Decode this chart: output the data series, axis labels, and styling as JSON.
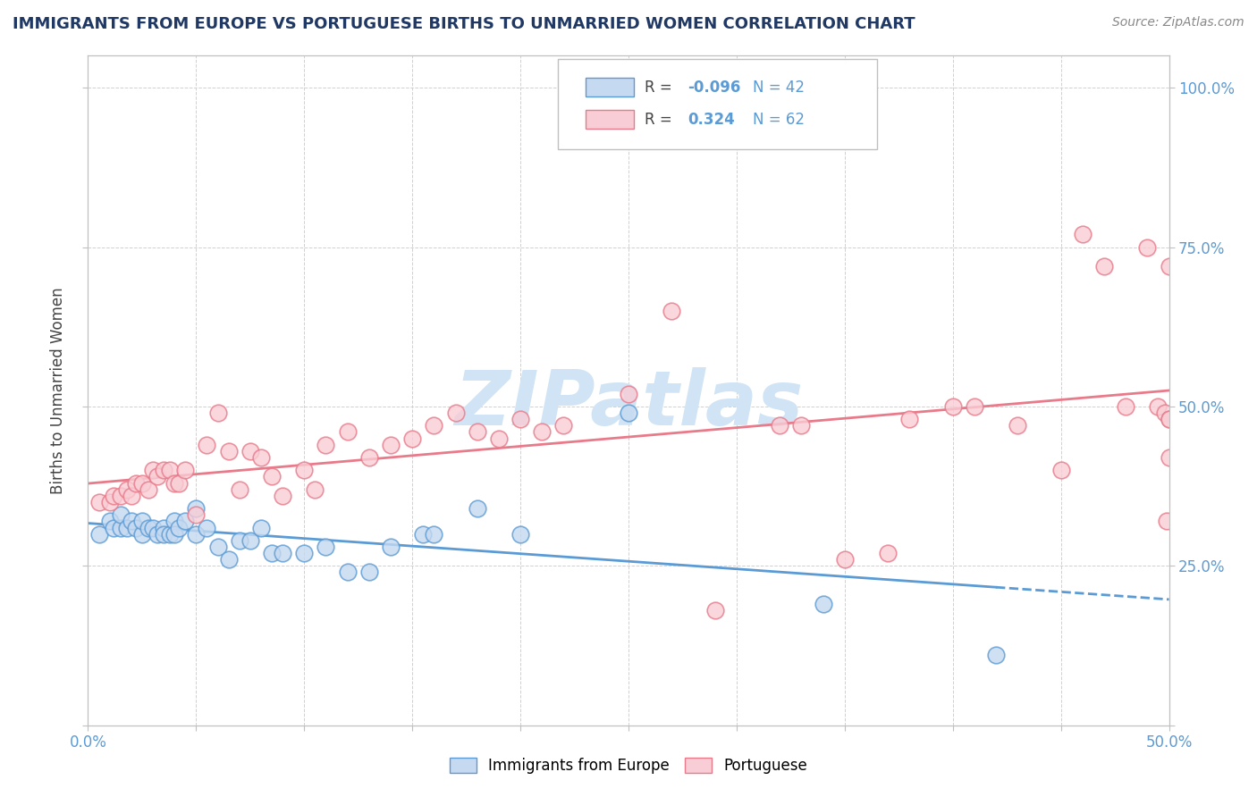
{
  "title": "IMMIGRANTS FROM EUROPE VS PORTUGUESE BIRTHS TO UNMARRIED WOMEN CORRELATION CHART",
  "source": "Source: ZipAtlas.com",
  "ylabel": "Births to Unmarried Women",
  "xlim": [
    0.0,
    0.5
  ],
  "ylim": [
    0.0,
    1.05
  ],
  "legend_r_blue": "-0.096",
  "legend_n_blue": "42",
  "legend_r_pink": "0.324",
  "legend_n_pink": "62",
  "blue_fill": "#c5d9f0",
  "blue_edge": "#5b9bd5",
  "pink_fill": "#f9cdd5",
  "pink_edge": "#e87a8a",
  "pink_line": "#e87a8a",
  "blue_line": "#5b9bd5",
  "watermark_color": "#d0e4f5",
  "blue_scatter_x": [
    0.005,
    0.01,
    0.012,
    0.015,
    0.015,
    0.018,
    0.02,
    0.022,
    0.025,
    0.025,
    0.028,
    0.03,
    0.032,
    0.035,
    0.035,
    0.038,
    0.04,
    0.04,
    0.042,
    0.045,
    0.05,
    0.05,
    0.055,
    0.06,
    0.065,
    0.07,
    0.075,
    0.08,
    0.085,
    0.09,
    0.1,
    0.11,
    0.12,
    0.13,
    0.14,
    0.155,
    0.16,
    0.18,
    0.2,
    0.25,
    0.34,
    0.42
  ],
  "blue_scatter_y": [
    0.3,
    0.32,
    0.31,
    0.31,
    0.33,
    0.31,
    0.32,
    0.31,
    0.3,
    0.32,
    0.31,
    0.31,
    0.3,
    0.31,
    0.3,
    0.3,
    0.32,
    0.3,
    0.31,
    0.32,
    0.3,
    0.34,
    0.31,
    0.28,
    0.26,
    0.29,
    0.29,
    0.31,
    0.27,
    0.27,
    0.27,
    0.28,
    0.24,
    0.24,
    0.28,
    0.3,
    0.3,
    0.34,
    0.3,
    0.49,
    0.19,
    0.11
  ],
  "pink_scatter_x": [
    0.005,
    0.01,
    0.012,
    0.015,
    0.018,
    0.02,
    0.022,
    0.025,
    0.028,
    0.03,
    0.032,
    0.035,
    0.038,
    0.04,
    0.042,
    0.045,
    0.05,
    0.055,
    0.06,
    0.065,
    0.07,
    0.075,
    0.08,
    0.085,
    0.09,
    0.1,
    0.105,
    0.11,
    0.12,
    0.13,
    0.14,
    0.15,
    0.16,
    0.17,
    0.18,
    0.19,
    0.2,
    0.21,
    0.22,
    0.25,
    0.27,
    0.29,
    0.32,
    0.33,
    0.35,
    0.37,
    0.38,
    0.4,
    0.41,
    0.43,
    0.45,
    0.46,
    0.47,
    0.48,
    0.49,
    0.495,
    0.498,
    0.499,
    0.5,
    0.5,
    0.5,
    0.5
  ],
  "pink_scatter_y": [
    0.35,
    0.35,
    0.36,
    0.36,
    0.37,
    0.36,
    0.38,
    0.38,
    0.37,
    0.4,
    0.39,
    0.4,
    0.4,
    0.38,
    0.38,
    0.4,
    0.33,
    0.44,
    0.49,
    0.43,
    0.37,
    0.43,
    0.42,
    0.39,
    0.36,
    0.4,
    0.37,
    0.44,
    0.46,
    0.42,
    0.44,
    0.45,
    0.47,
    0.49,
    0.46,
    0.45,
    0.48,
    0.46,
    0.47,
    0.52,
    0.65,
    0.18,
    0.47,
    0.47,
    0.26,
    0.27,
    0.48,
    0.5,
    0.5,
    0.47,
    0.4,
    0.77,
    0.72,
    0.5,
    0.75,
    0.5,
    0.49,
    0.32,
    0.48,
    0.72,
    0.42,
    0.48
  ]
}
